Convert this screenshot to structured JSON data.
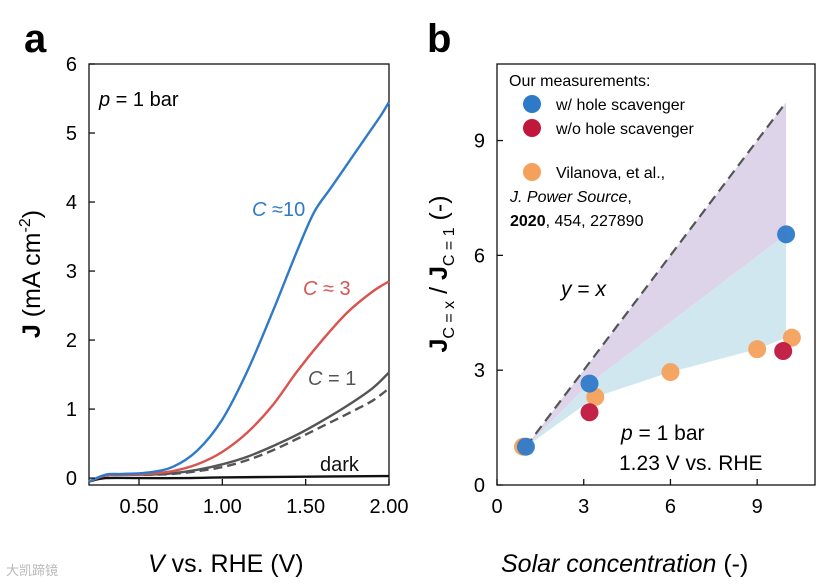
{
  "chart_data": [
    {
      "panel": "a",
      "type": "line",
      "xlabel_var": "V",
      "xlabel_rest": " vs. RHE (V)",
      "ylabel_main": "J",
      "ylabel_rest": " (mA cm",
      "ylabel_sup": "-2",
      "ylabel_close": ")",
      "xlim": [
        0.2,
        2.0
      ],
      "ylim": [
        -0.1,
        6
      ],
      "xticks": [
        0.5,
        1.0,
        1.5,
        2.0
      ],
      "xtick_labels": [
        "0.50",
        "1.00",
        "1.50",
        "2.00"
      ],
      "yticks": [
        0,
        1,
        2,
        3,
        4,
        5,
        6
      ],
      "ytick_labels": [
        "0",
        "1",
        "2",
        "3",
        "4",
        "5",
        "6"
      ],
      "annotation_pressure": {
        "var": "p",
        "rest": " = 1 bar"
      },
      "series": [
        {
          "name": "dark",
          "label_var": "",
          "label_rest": "dark",
          "color": "#111111",
          "dashed": false,
          "x": [
            0.2,
            0.3,
            0.5,
            0.8,
            1.0,
            1.5,
            2.0
          ],
          "y": [
            -0.05,
            0.0,
            0.0,
            0.0,
            0.01,
            0.02,
            0.03
          ]
        },
        {
          "name": "C = 1 (dashed)",
          "label_var": "",
          "label_rest": "",
          "color": "#555555",
          "dashed": true,
          "x": [
            0.2,
            0.3,
            0.4,
            0.55,
            0.7,
            0.85,
            1.0,
            1.15,
            1.3,
            1.45,
            1.6,
            1.75,
            1.9,
            2.0
          ],
          "y": [
            -0.05,
            0.04,
            0.05,
            0.05,
            0.06,
            0.1,
            0.16,
            0.26,
            0.4,
            0.57,
            0.75,
            0.93,
            1.12,
            1.3
          ]
        },
        {
          "name": "C = 1",
          "label_var": "C",
          "label_rest": " = 1",
          "color": "#555555",
          "dashed": false,
          "x": [
            0.2,
            0.3,
            0.4,
            0.55,
            0.7,
            0.85,
            1.0,
            1.15,
            1.3,
            1.45,
            1.6,
            1.75,
            1.9,
            2.0
          ],
          "y": [
            -0.05,
            0.04,
            0.05,
            0.05,
            0.07,
            0.12,
            0.2,
            0.31,
            0.46,
            0.63,
            0.83,
            1.05,
            1.3,
            1.53
          ]
        },
        {
          "name": "C ≈ 3",
          "label_var": "C",
          "label_rest": " ≈ 3",
          "color": "#d9534f",
          "dashed": false,
          "x": [
            0.2,
            0.3,
            0.4,
            0.55,
            0.7,
            0.85,
            1.0,
            1.15,
            1.3,
            1.45,
            1.6,
            1.75,
            1.9,
            2.0
          ],
          "y": [
            -0.05,
            0.04,
            0.05,
            0.06,
            0.1,
            0.2,
            0.38,
            0.66,
            1.05,
            1.55,
            2.0,
            2.4,
            2.7,
            2.85
          ]
        },
        {
          "name": "C ≈10",
          "label_var": "C",
          "label_rest": " ≈10",
          "color": "#2f7ac8",
          "dashed": false,
          "x": [
            0.2,
            0.3,
            0.4,
            0.55,
            0.7,
            0.85,
            1.0,
            1.15,
            1.3,
            1.45,
            1.55,
            1.65,
            1.75,
            1.85,
            1.95,
            2.0
          ],
          "y": [
            -0.05,
            0.05,
            0.06,
            0.08,
            0.16,
            0.4,
            0.85,
            1.55,
            2.4,
            3.3,
            3.85,
            4.2,
            4.55,
            4.9,
            5.25,
            5.45
          ]
        }
      ]
    },
    {
      "panel": "b",
      "type": "scatter",
      "xlabel": "Solar concentration",
      "xlabel_unit": " (-)",
      "ylabel_main1": "J",
      "ylabel_sub1": "C = x",
      "ylabel_mid": " / ",
      "ylabel_main2": "J",
      "ylabel_sub2": "C = 1",
      "ylabel_unit": " (-)",
      "xlim": [
        0,
        11
      ],
      "ylim": [
        0,
        11
      ],
      "xticks": [
        0,
        3,
        6,
        9
      ],
      "xtick_labels": [
        "0",
        "3",
        "6",
        "9"
      ],
      "yticks": [
        0,
        3,
        6,
        9
      ],
      "ytick_labels": [
        "0",
        "3",
        "6",
        "9"
      ],
      "identity_line": {
        "label_y": "y",
        "label_eq": " = ",
        "label_x": "x",
        "x": [
          1,
          10
        ],
        "y": [
          1,
          10
        ]
      },
      "legend_title": "Our measurements:",
      "legend_items": [
        {
          "label": "w/ hole scavenger",
          "color": "#2f7ac8"
        },
        {
          "label": "w/o hole scavenger",
          "color": "#c0173d"
        },
        {
          "label": "Vilanova, et al.,",
          "color": "#f4a15c"
        }
      ],
      "citation_journal": "J. Power Source",
      "citation_year": "2020",
      "citation_rest": ", 454, 227890",
      "citation_comma": ",",
      "conditions_var": "p",
      "conditions_rest": " = 1 bar",
      "conditions_line2": "1.23 V vs. RHE",
      "series": [
        {
          "name": "w/ hole scavenger",
          "color": "#2f7ac8",
          "x": [
            1.0,
            3.2,
            10.0
          ],
          "y": [
            1.0,
            2.65,
            6.55
          ]
        },
        {
          "name": "w/o hole scavenger",
          "color": "#c0173d",
          "x": [
            3.2,
            9.9
          ],
          "y": [
            1.9,
            3.5
          ]
        },
        {
          "name": "Vilanova, et al.",
          "color": "#f4a15c",
          "x": [
            0.9,
            3.4,
            6.0,
            9.0,
            10.2
          ],
          "y": [
            1.0,
            2.3,
            2.95,
            3.55,
            3.85
          ]
        }
      ],
      "shade_upper_color": "#d9cfe8",
      "shade_lower_color": "#cfe6ee"
    }
  ],
  "panel_labels": [
    "a",
    "b"
  ],
  "watermark": "大凯蹄镜"
}
